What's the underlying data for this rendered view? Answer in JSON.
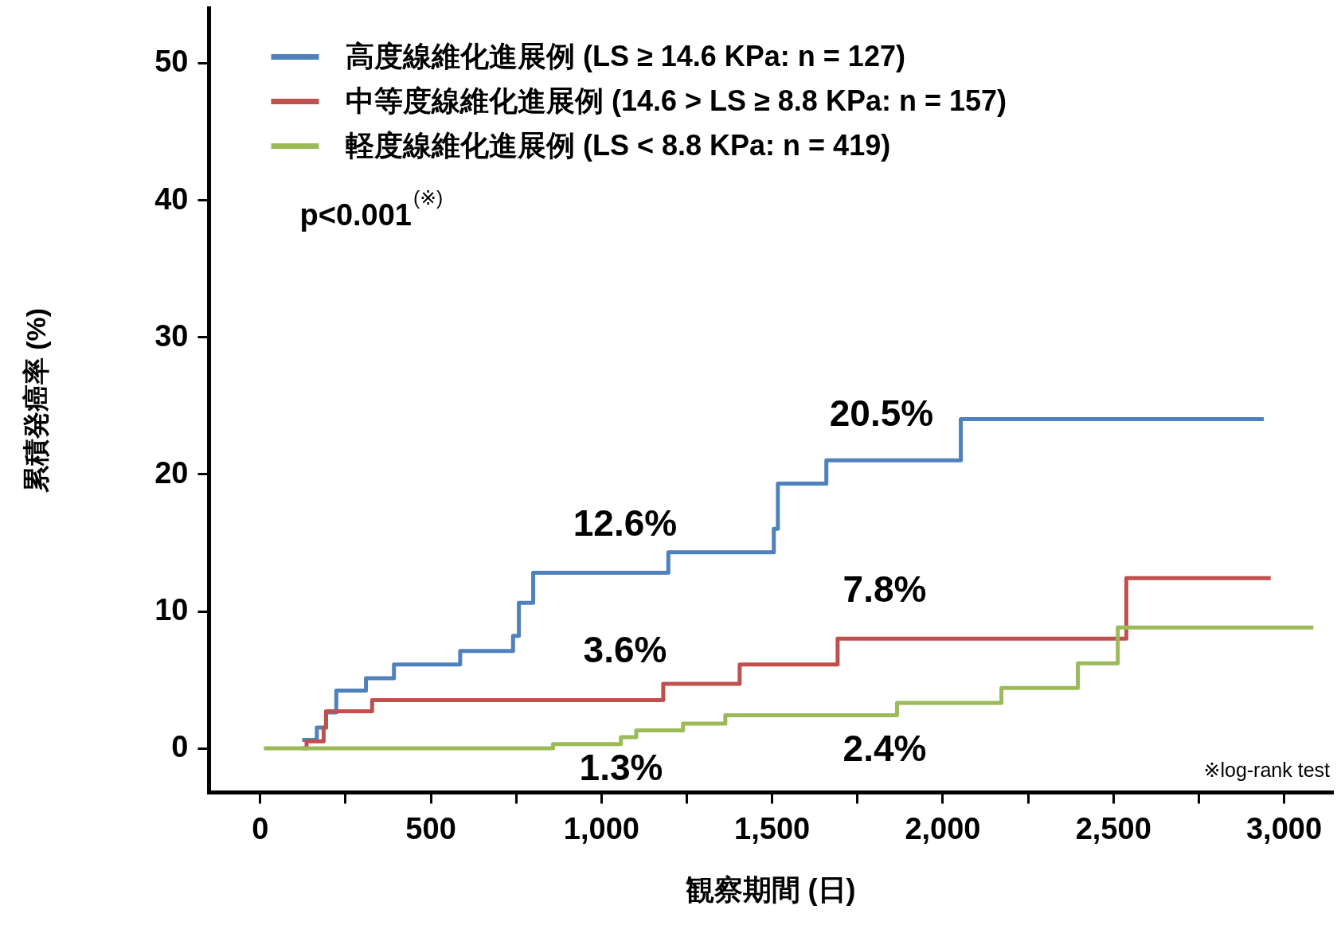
{
  "chart_data": {
    "type": "step",
    "xlabel": "観察期間 (日)",
    "ylabel": "累積発癌率 (%)",
    "xlim": [
      -150,
      3140
    ],
    "ylim": [
      -3.2,
      54
    ],
    "xticks": [
      0,
      {
        "value": 250,
        "label": null
      },
      500,
      {
        "value": 750,
        "label": null
      },
      {
        "value": 1000,
        "label": "1,000"
      },
      {
        "value": 1250,
        "label": null
      },
      {
        "value": 1500,
        "label": "1,500"
      },
      {
        "value": 1750,
        "label": null
      },
      {
        "value": 2000,
        "label": "2,000"
      },
      {
        "value": 2250,
        "label": null
      },
      {
        "value": 2500,
        "label": "2,500"
      },
      {
        "value": 2750,
        "label": null
      },
      {
        "value": 3000,
        "label": "3,000"
      }
    ],
    "yticks": [
      0,
      10,
      20,
      30,
      40,
      50
    ],
    "grid": false,
    "legend": "top left",
    "line_style": "solid",
    "marker": "none",
    "series": [
      {
        "name": "高度線維化進展例 (LS ≥ 14.6 KPa: n = 127)",
        "color": "#4f81bd",
        "x": [
          124,
          167,
          194,
          224,
          311,
          393,
          587,
          742,
          759,
          801,
          1197,
          1506,
          1518,
          1660,
          2054,
          2942
        ],
        "values": [
          0.6,
          1.5,
          2.6,
          4.2,
          5.1,
          6.1,
          7.1,
          8.2,
          10.6,
          12.8,
          14.3,
          16,
          19.3,
          21.0,
          24.0,
          24.0
        ]
      },
      {
        "name": "中等度線維化進展例 (14.6 > LS ≥ 8.8 KPa: n = 157)",
        "color": "#c0504d",
        "x": [
          124,
          137,
          187,
          194,
          329,
          1182,
          1406,
          1693,
          2539,
          2962
        ],
        "values": [
          0,
          0.5,
          1.5,
          2.7,
          3.5,
          4.7,
          6.1,
          8.0,
          12.4,
          12.4
        ]
      },
      {
        "name": "軽度線維化進展例 (LS < 8.8 KPa: n = 419)",
        "color": "#9bbb59",
        "x": [
          12,
          859,
          1058,
          1103,
          1240,
          1364,
          1867,
          2173,
          2397,
          2514,
          3087
        ],
        "values": [
          0,
          0.3,
          0.8,
          1.3,
          1.8,
          2.4,
          3.3,
          4.4,
          6.2,
          8.8,
          8.8
        ]
      }
    ],
    "annotations": [
      "12.6%",
      "20.5%",
      "3.6%",
      "7.8%",
      "1.3%",
      "2.4%",
      "p<0.001$^{(※)}$",
      "※log-rank test"
    ]
  }
}
